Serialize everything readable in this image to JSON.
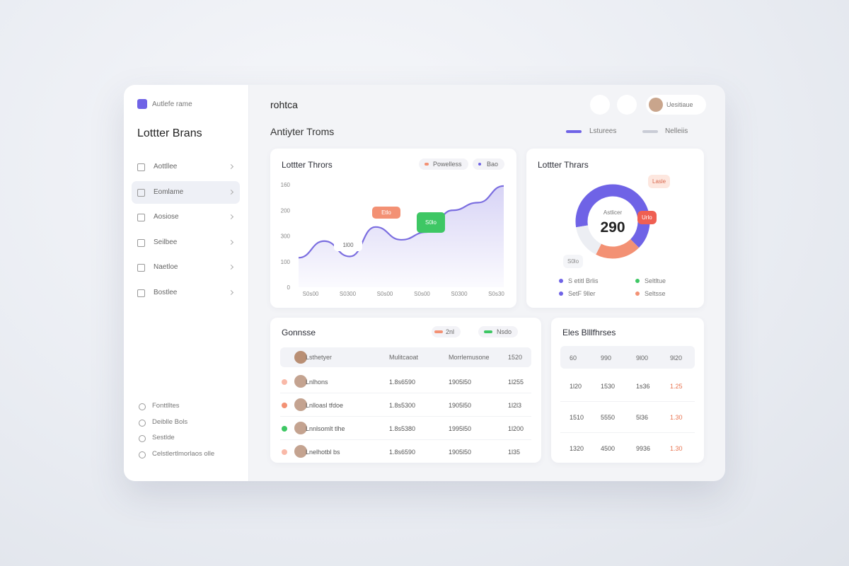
{
  "sidebar": {
    "brand": "Autlefe rame",
    "title": "Lottter Brans",
    "nav": [
      "Aottllee",
      "Eomlame",
      "Aosiose",
      "Seilbee",
      "Naetloe",
      "Bostlee"
    ],
    "footer": [
      "Fonttlltes",
      "Deiblle Bols",
      "Sestlde",
      "Celstlertlmorlaos olle"
    ]
  },
  "header": {
    "title": "rohtca",
    "user": "Uesitiaue",
    "subtitle": "Antiyter Troms",
    "legend": [
      "Lsturees",
      "Nelleiis"
    ]
  },
  "line_chart": {
    "title": "Lottter Thrors",
    "chips": [
      "Powelless",
      "Bao"
    ],
    "y_labels": [
      "160",
      "200",
      "300",
      "100",
      "0"
    ],
    "x_labels": [
      "S0s00",
      "S0300",
      "S0s00",
      "S0s00",
      "S0300",
      "S0s30"
    ],
    "values": [
      115,
      180,
      120,
      235,
      185,
      215,
      300,
      330,
      395
    ],
    "ylim": [
      0,
      400
    ],
    "color": "#7b6ee0",
    "callouts": [
      "Etlo",
      "S0lo",
      "1l00"
    ]
  },
  "donut": {
    "title": "Lottter Thrars",
    "center_label": "Astlicer",
    "center_value": "290",
    "segments": [
      {
        "value": 65,
        "color": "#6f63e6"
      },
      {
        "value": 20,
        "color": "#f39174"
      },
      {
        "value": 15,
        "color": "#eceef3"
      }
    ],
    "callouts": [
      "Lasle",
      "Urlo",
      "S0lo"
    ],
    "legend": [
      "S etitl Brlis",
      "Seltltue",
      "SetF 9ller",
      "Seltsse"
    ]
  },
  "table1": {
    "title": "Gonnsse",
    "chips": [
      "2nl",
      "Nsdo"
    ],
    "header": [
      "Lsthetyer",
      "Mulitcaoat",
      "Morrlemusone",
      "1520"
    ],
    "rows": [
      [
        "Lnlhons",
        "1.8s6590",
        "1905l50",
        "1l255"
      ],
      [
        "Lnlloasl tfdoe",
        "1.8s5300",
        "1905l50",
        "1l2l3"
      ],
      [
        "Lnnlsomlt tlhe",
        "1.8s5380",
        "1995l50",
        "1l200"
      ],
      [
        "Lnelhotbl bs",
        "1.8s6590",
        "1905l50",
        "1l35"
      ]
    ]
  },
  "table2": {
    "title": "Eles Blllfhrses",
    "header": [
      "60",
      "990",
      "9l00",
      "9l20"
    ],
    "rows": [
      [
        "1l20",
        "1530",
        "1s36",
        "1.25"
      ],
      [
        "1510",
        "5550",
        "5l36",
        "1.30"
      ],
      [
        "1320",
        "4500",
        "9936",
        "1.30"
      ]
    ]
  }
}
